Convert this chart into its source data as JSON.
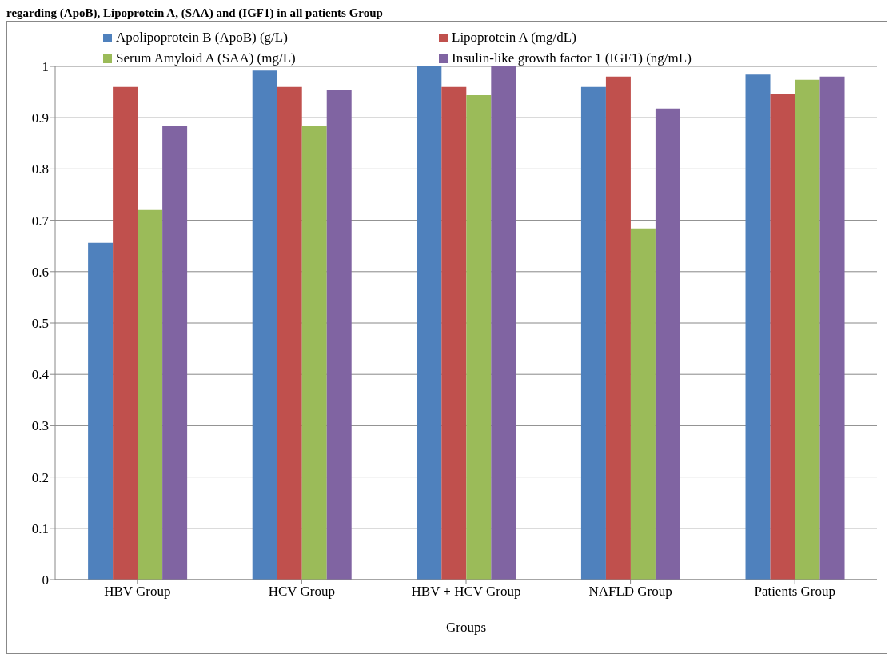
{
  "chart_data": {
    "type": "bar",
    "title": "regarding (ApoB), Lipoprotein A, (SAA) and (IGF1) in all patients Group",
    "xlabel": "Groups",
    "categories": [
      "HBV Group",
      "HCV Group",
      "HBV + HCV Group",
      "NAFLD Group",
      "Patients Group"
    ],
    "series": [
      {
        "name": "Apolipoprotein B (ApoB) (g/L)",
        "color": "#4f81bd",
        "values": [
          0.656,
          0.992,
          1,
          0.96,
          0.984
        ]
      },
      {
        "name": "Lipoprotein A (mg/dL)",
        "color": "#c0504d",
        "values": [
          0.96,
          0.96,
          0.96,
          0.98,
          0.946
        ]
      },
      {
        "name": "Serum Amyloid A (SAA) (mg/L)",
        "color": "#9bbb59",
        "values": [
          0.72,
          0.884,
          0.944,
          0.684,
          0.974
        ]
      },
      {
        "name": "Insulin-like growth factor 1 (IGF1) (ng/mL)",
        "color": "#8064a2",
        "values": [
          0.884,
          0.954,
          1,
          0.918,
          0.98
        ]
      }
    ],
    "ylim": [
      0,
      1
    ],
    "yticks": [
      0,
      0.1,
      0.2,
      0.3,
      0.4,
      0.5,
      0.6,
      0.7,
      0.8,
      0.9,
      1
    ],
    "grid": "y",
    "legend": "top"
  }
}
